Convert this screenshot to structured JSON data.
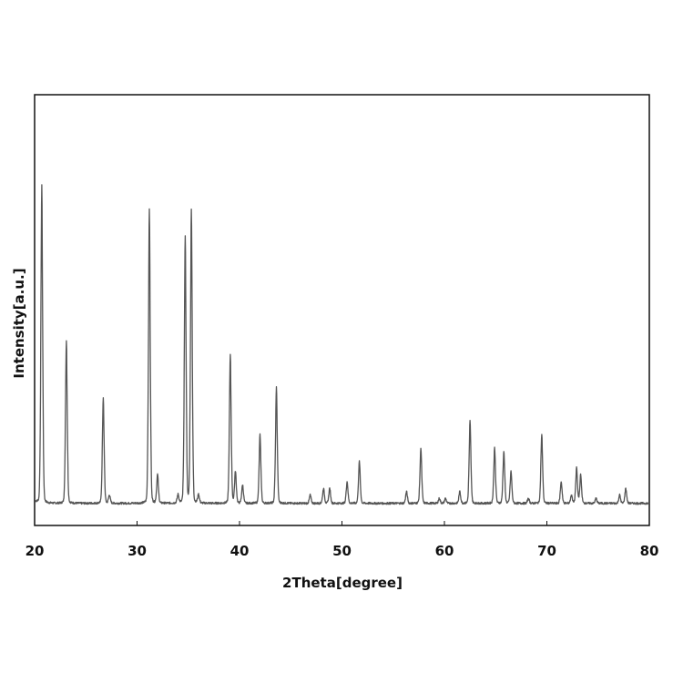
{
  "chart_data": {
    "type": "line",
    "title": "",
    "xlabel": "2Theta[degree]",
    "ylabel": "Intensity[a.u.]",
    "xlim": [
      20,
      80
    ],
    "ylim": [
      0,
      100
    ],
    "grid": false,
    "legend": "none",
    "x_ticks": [
      "20",
      "30",
      "40",
      "50",
      "60",
      "70",
      "80"
    ],
    "line_color": "#555555",
    "baseline": 5.5,
    "peaks": [
      {
        "x": 20.7,
        "y": 100
      },
      {
        "x": 23.1,
        "y": 54
      },
      {
        "x": 26.7,
        "y": 37
      },
      {
        "x": 27.3,
        "y": 8
      },
      {
        "x": 31.2,
        "y": 93
      },
      {
        "x": 32.0,
        "y": 14
      },
      {
        "x": 34.0,
        "y": 8
      },
      {
        "x": 34.7,
        "y": 85
      },
      {
        "x": 35.3,
        "y": 93
      },
      {
        "x": 36.0,
        "y": 8
      },
      {
        "x": 39.1,
        "y": 50
      },
      {
        "x": 39.6,
        "y": 15
      },
      {
        "x": 40.3,
        "y": 11
      },
      {
        "x": 42.0,
        "y": 26
      },
      {
        "x": 43.6,
        "y": 40
      },
      {
        "x": 46.9,
        "y": 8
      },
      {
        "x": 48.2,
        "y": 10
      },
      {
        "x": 48.8,
        "y": 10
      },
      {
        "x": 50.5,
        "y": 12
      },
      {
        "x": 51.7,
        "y": 18
      },
      {
        "x": 56.3,
        "y": 9
      },
      {
        "x": 57.7,
        "y": 22
      },
      {
        "x": 59.5,
        "y": 7
      },
      {
        "x": 60.1,
        "y": 7
      },
      {
        "x": 61.5,
        "y": 9
      },
      {
        "x": 62.5,
        "y": 30
      },
      {
        "x": 64.9,
        "y": 22
      },
      {
        "x": 65.8,
        "y": 21
      },
      {
        "x": 66.5,
        "y": 15
      },
      {
        "x": 68.2,
        "y": 7
      },
      {
        "x": 69.5,
        "y": 26
      },
      {
        "x": 71.4,
        "y": 12
      },
      {
        "x": 72.4,
        "y": 8
      },
      {
        "x": 72.9,
        "y": 16
      },
      {
        "x": 73.3,
        "y": 14
      },
      {
        "x": 74.8,
        "y": 7
      },
      {
        "x": 77.1,
        "y": 8
      },
      {
        "x": 77.7,
        "y": 10
      }
    ]
  }
}
